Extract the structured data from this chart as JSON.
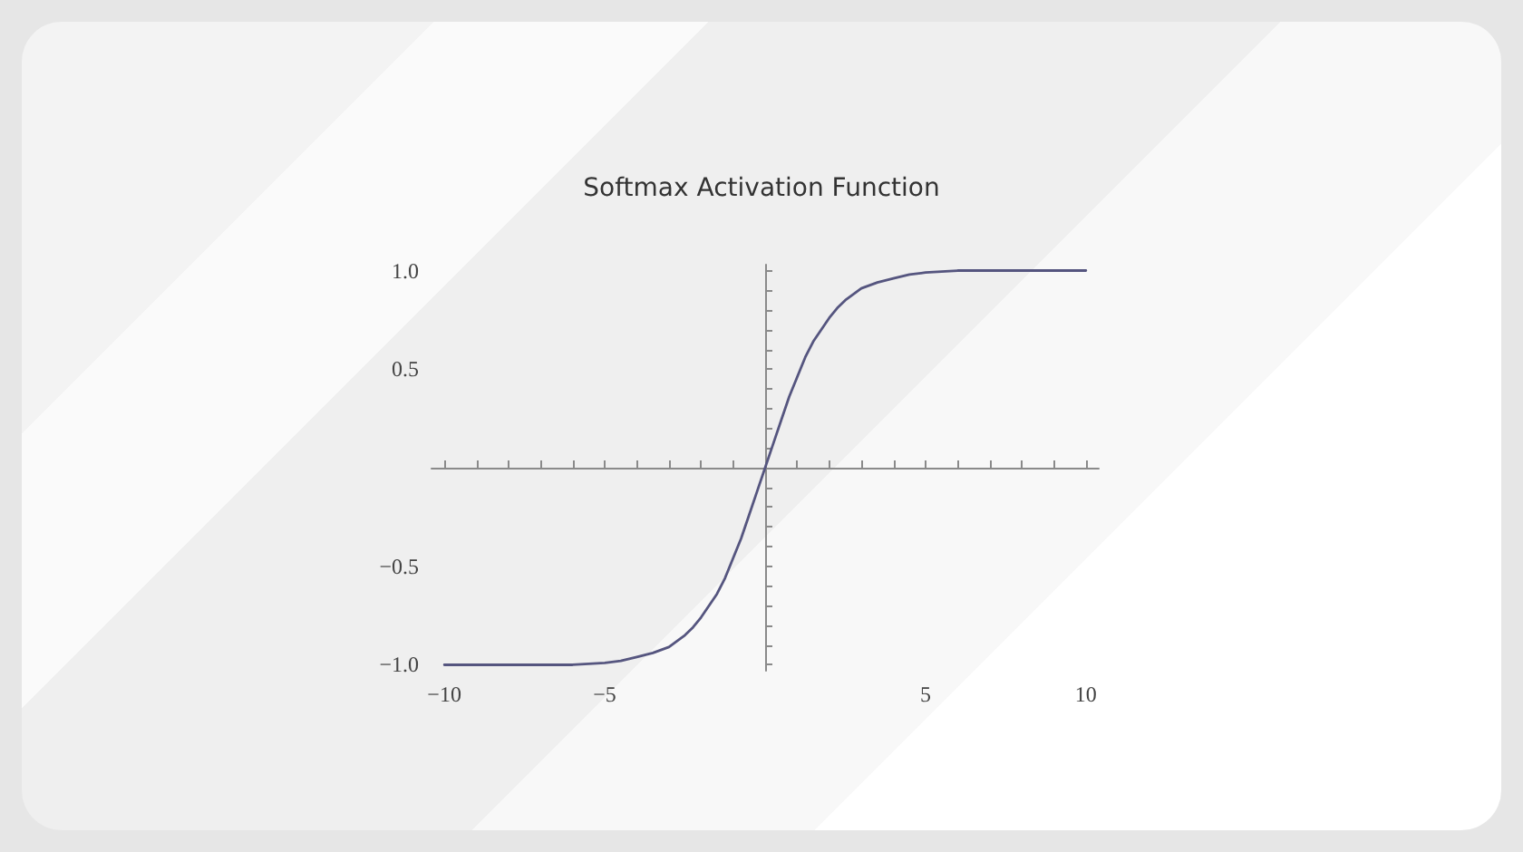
{
  "chart_data": {
    "type": "line",
    "title": "Softmax Activation Function",
    "x": [
      -10,
      -8,
      -6,
      -5,
      -4.5,
      -4,
      -3.5,
      -3,
      -2.75,
      -2.5,
      -2.25,
      -2,
      -1.75,
      -1.5,
      -1.25,
      -1,
      -0.75,
      -0.5,
      -0.25,
      0,
      0.25,
      0.5,
      0.75,
      1,
      1.25,
      1.5,
      1.75,
      2,
      2.25,
      2.5,
      2.75,
      3,
      3.5,
      4,
      4.5,
      5,
      6,
      8,
      10
    ],
    "series": [
      {
        "color": "#55557f",
        "values": [
          -1.0,
          -1.0,
          -1.0,
          -0.99,
          -0.98,
          -0.96,
          -0.94,
          -0.91,
          -0.88,
          -0.85,
          -0.81,
          -0.76,
          -0.7,
          -0.64,
          -0.56,
          -0.46,
          -0.36,
          -0.24,
          -0.12,
          0,
          0.12,
          0.24,
          0.36,
          0.46,
          0.56,
          0.64,
          0.7,
          0.76,
          0.81,
          0.85,
          0.88,
          0.91,
          0.94,
          0.96,
          0.98,
          0.99,
          1.0,
          1.0,
          1.0
        ]
      }
    ],
    "xlim": [
      -10.4,
      10.4
    ],
    "ylim": [
      -1.03,
      1.03
    ],
    "xticks": [
      {
        "value": -10,
        "label": "−10"
      },
      {
        "value": -9,
        "label": null
      },
      {
        "value": -8,
        "label": null
      },
      {
        "value": -7,
        "label": null
      },
      {
        "value": -6,
        "label": null
      },
      {
        "value": -5,
        "label": "−5"
      },
      {
        "value": -4,
        "label": null
      },
      {
        "value": -3,
        "label": null
      },
      {
        "value": -2,
        "label": null
      },
      {
        "value": -1,
        "label": null
      },
      {
        "value": 1,
        "label": null
      },
      {
        "value": 2,
        "label": null
      },
      {
        "value": 3,
        "label": null
      },
      {
        "value": 4,
        "label": null
      },
      5,
      {
        "value": 6,
        "label": null
      },
      {
        "value": 7,
        "label": null
      },
      {
        "value": 8,
        "label": null
      },
      {
        "value": 9,
        "label": null
      },
      10
    ],
    "yticks": [
      {
        "value": -1,
        "label": "−1.0"
      },
      {
        "value": -0.9,
        "label": null
      },
      {
        "value": -0.8,
        "label": null
      },
      {
        "value": -0.7,
        "label": null
      },
      {
        "value": -0.6,
        "label": null
      },
      {
        "value": -0.5,
        "label": "−0.5"
      },
      {
        "value": -0.4,
        "label": null
      },
      {
        "value": -0.3,
        "label": null
      },
      {
        "value": -0.2,
        "label": null
      },
      {
        "value": -0.1,
        "label": null
      },
      {
        "value": 0.1,
        "label": null
      },
      {
        "value": 0.2,
        "label": null
      },
      {
        "value": 0.3,
        "label": null
      },
      {
        "value": 0.4,
        "label": null
      },
      0.5,
      {
        "value": 0.6,
        "label": null
      },
      {
        "value": 0.7,
        "label": null
      },
      {
        "value": 0.8,
        "label": null
      },
      {
        "value": 0.9,
        "label": null
      },
      {
        "value": 1,
        "label": "1.0"
      }
    ],
    "marker": "none",
    "line_style": "solid"
  }
}
